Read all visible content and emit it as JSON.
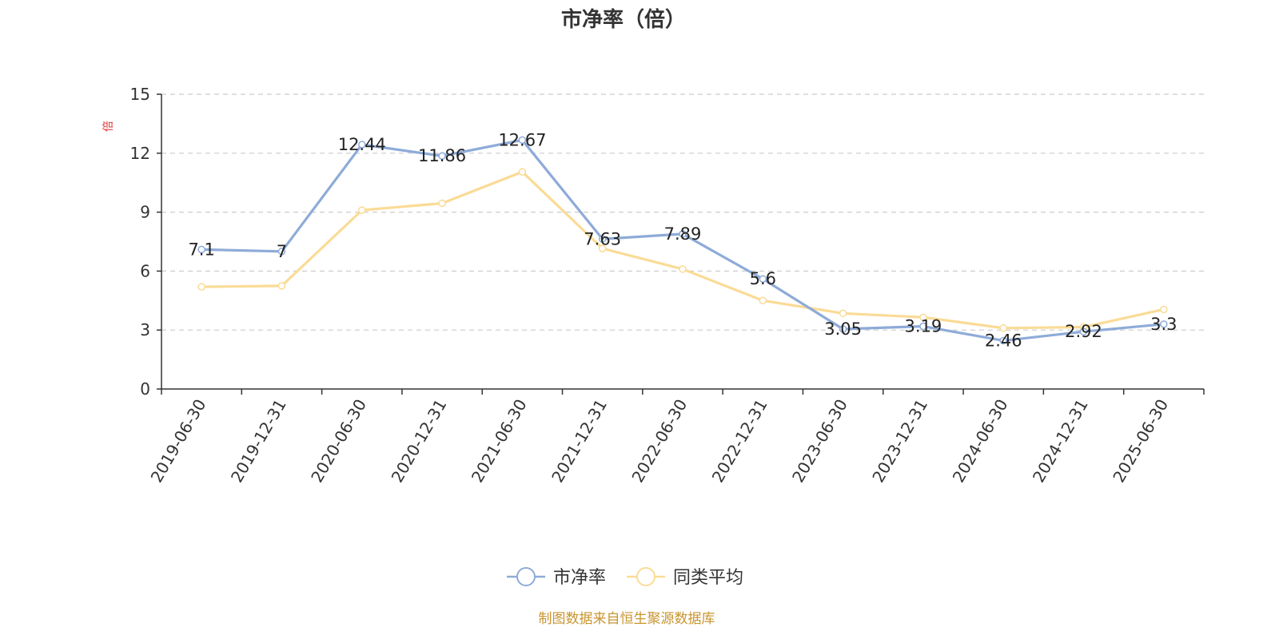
{
  "chart_data": {
    "type": "line",
    "title": "市净率（倍）",
    "ylabel": "倍",
    "xlabel": "",
    "ylim": [
      0,
      15
    ],
    "yticks": [
      0,
      3,
      6,
      9,
      12,
      15
    ],
    "grid": true,
    "legend_position": "bottom-center",
    "categories": [
      "2019-06-30",
      "2019-12-31",
      "2020-06-30",
      "2020-12-31",
      "2021-06-30",
      "2021-12-31",
      "2022-06-30",
      "2022-12-31",
      "2023-06-30",
      "2023-12-31",
      "2024-06-30",
      "2024-12-31",
      "2025-06-30"
    ],
    "series": [
      {
        "name": "市净率",
        "color": "#8eabd8",
        "values": [
          7.1,
          7,
          12.44,
          11.86,
          12.67,
          7.63,
          7.89,
          5.6,
          3.05,
          3.19,
          2.46,
          2.92,
          3.3
        ],
        "labels": [
          "7.1",
          "7",
          "12.44",
          "11.86",
          "12.67",
          "7.63",
          "7.89",
          "5.6",
          "3.05",
          "3.19",
          "2.46",
          "2.92",
          "3.3"
        ]
      },
      {
        "name": "同类平均",
        "color": "#fadb96",
        "values": [
          5.2,
          5.25,
          9.1,
          9.45,
          11.05,
          7.15,
          6.1,
          4.5,
          3.85,
          3.65,
          3.1,
          3.15,
          4.05
        ]
      }
    ],
    "source_note": "制图数据来自恒生聚源数据库"
  }
}
